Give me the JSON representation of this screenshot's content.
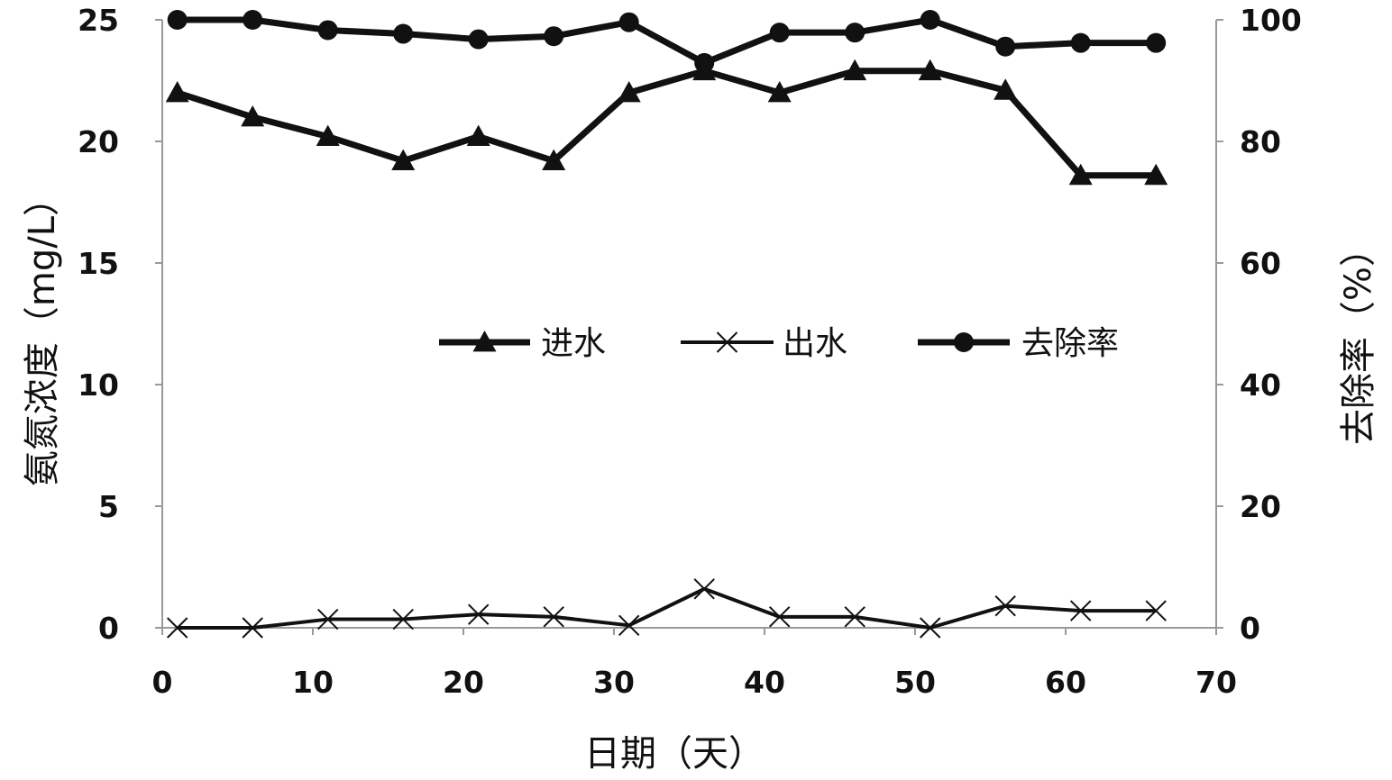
{
  "chart_data": {
    "type": "line",
    "xlabel": "日期（天）",
    "ylabel_left": "氨氮浓度（mg/L）",
    "ylabel_right": "去除率（%）",
    "xlim": [
      0,
      70
    ],
    "ylim_left": [
      0,
      25
    ],
    "ylim_right": [
      0,
      100
    ],
    "x_ticks": [
      0,
      10,
      20,
      30,
      40,
      50,
      60,
      70
    ],
    "y_left_ticks": [
      0,
      5,
      10,
      15,
      20,
      25
    ],
    "y_right_ticks": [
      0,
      20,
      40,
      60,
      80,
      100
    ],
    "grid": false,
    "legend_position": "center",
    "x": [
      1,
      6,
      11,
      16,
      21,
      26,
      31,
      36,
      41,
      46,
      51,
      56,
      61,
      66
    ],
    "series": [
      {
        "name": "进水",
        "axis": "left",
        "marker": "triangle",
        "values": [
          22.0,
          21.0,
          20.2,
          19.2,
          20.2,
          19.2,
          22.0,
          22.9,
          22.0,
          22.9,
          22.9,
          22.1,
          18.6,
          18.6
        ]
      },
      {
        "name": "出水",
        "axis": "left",
        "marker": "x",
        "values": [
          0.0,
          0.0,
          0.35,
          0.35,
          0.55,
          0.45,
          0.1,
          1.6,
          0.45,
          0.45,
          0.0,
          0.9,
          0.7,
          0.7
        ]
      },
      {
        "name": "去除率",
        "axis": "right",
        "marker": "circle",
        "values": [
          100,
          100,
          98.3,
          97.7,
          96.8,
          97.3,
          99.6,
          92.9,
          97.9,
          97.9,
          100,
          95.6,
          96.2,
          96.2
        ]
      }
    ]
  }
}
